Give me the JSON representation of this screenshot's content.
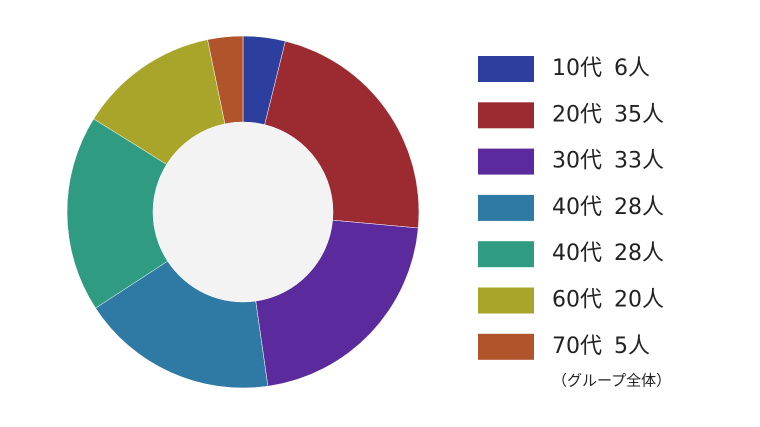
{
  "chart_data": {
    "type": "donut",
    "categories": [
      "10代",
      "20代",
      "30代",
      "40代",
      "40代",
      "60代",
      "70代"
    ],
    "values": [
      6,
      35,
      33,
      28,
      28,
      20,
      5
    ],
    "value_labels": [
      "6人",
      "35人",
      "33人",
      "28人",
      "28人",
      "20人",
      "5人"
    ],
    "colors": [
      "#2c3e9e",
      "#9b2a31",
      "#5b2a9c",
      "#2f7aa5",
      "#2f9b80",
      "#a9a52b",
      "#b0552b"
    ],
    "note": "（グループ全体）"
  }
}
